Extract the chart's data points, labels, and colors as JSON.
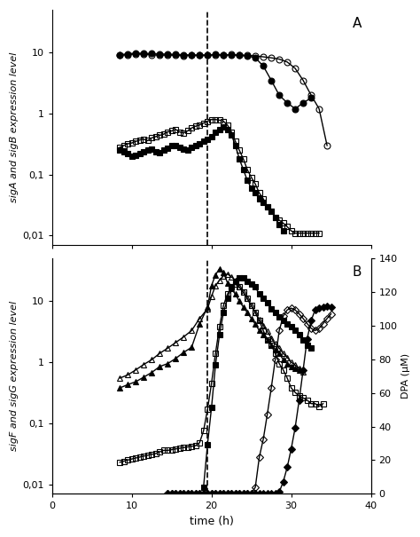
{
  "panel_A": {
    "open_circle": {
      "x": [
        8.5,
        9.5,
        10.5,
        11.5,
        12.5,
        13.5,
        14.5,
        15.5,
        16.5,
        17.5,
        18.5,
        19.5,
        20.5,
        21.5,
        22.5,
        23.5,
        24.5,
        25.5,
        26.5,
        27.5,
        28.5,
        29.5,
        30.5,
        31.5,
        32.5,
        33.5,
        34.5
      ],
      "y": [
        9.0,
        9.2,
        9.5,
        9.3,
        9.2,
        9.0,
        9.1,
        9.0,
        8.9,
        9.0,
        9.1,
        9.0,
        9.2,
        9.0,
        9.3,
        9.1,
        9.0,
        8.8,
        8.5,
        8.2,
        7.8,
        7.0,
        5.5,
        3.5,
        2.0,
        1.2,
        0.3
      ],
      "marker": "o",
      "fillstyle": "none",
      "color": "black",
      "markersize": 5
    },
    "filled_circle": {
      "x": [
        8.5,
        9.5,
        10.5,
        11.5,
        12.5,
        13.5,
        14.5,
        15.5,
        16.5,
        17.5,
        18.5,
        19.5,
        20.5,
        21.5,
        22.5,
        23.5,
        24.5,
        25.5,
        26.5,
        27.5,
        28.5,
        29.5,
        30.5,
        31.5,
        32.5
      ],
      "y": [
        9.2,
        9.5,
        9.8,
        9.7,
        9.6,
        9.5,
        9.4,
        9.3,
        9.2,
        9.1,
        9.0,
        9.1,
        9.3,
        9.2,
        9.1,
        9.0,
        8.8,
        8.2,
        6.0,
        3.5,
        2.0,
        1.5,
        1.2,
        1.5,
        1.8
      ],
      "marker": "o",
      "fillstyle": "full",
      "color": "black",
      "markersize": 5
    },
    "open_square": {
      "x": [
        8.5,
        9.0,
        9.5,
        10.0,
        10.5,
        11.0,
        11.5,
        12.0,
        12.5,
        13.0,
        13.5,
        14.0,
        14.5,
        15.0,
        15.5,
        16.0,
        16.5,
        17.0,
        17.5,
        18.0,
        18.5,
        19.0,
        19.5,
        20.0,
        20.5,
        21.0,
        21.5,
        22.0,
        22.5,
        23.0,
        23.5,
        24.0,
        24.5,
        25.0,
        25.5,
        26.0,
        26.5,
        27.0,
        27.5,
        28.0,
        28.5,
        29.0,
        29.5,
        30.0,
        30.5,
        31.0,
        31.5,
        32.0,
        32.5,
        33.0,
        33.5
      ],
      "y": [
        0.28,
        0.3,
        0.32,
        0.33,
        0.35,
        0.37,
        0.38,
        0.36,
        0.4,
        0.42,
        0.44,
        0.46,
        0.5,
        0.52,
        0.55,
        0.5,
        0.48,
        0.52,
        0.58,
        0.62,
        0.65,
        0.7,
        0.75,
        0.8,
        0.8,
        0.78,
        0.75,
        0.65,
        0.5,
        0.35,
        0.25,
        0.18,
        0.12,
        0.09,
        0.07,
        0.05,
        0.04,
        0.03,
        0.025,
        0.02,
        0.018,
        0.016,
        0.014,
        0.012,
        0.011,
        0.011,
        0.011,
        0.011,
        0.011,
        0.011,
        0.011
      ],
      "marker": "s",
      "fillstyle": "none",
      "color": "black",
      "markersize": 4
    },
    "filled_square": {
      "x": [
        8.5,
        9.0,
        9.5,
        10.0,
        10.5,
        11.0,
        11.5,
        12.0,
        12.5,
        13.0,
        13.5,
        14.0,
        14.5,
        15.0,
        15.5,
        16.0,
        16.5,
        17.0,
        17.5,
        18.0,
        18.5,
        19.0,
        19.5,
        20.0,
        20.5,
        21.0,
        21.5,
        22.0,
        22.5,
        23.0,
        23.5,
        24.0,
        24.5,
        25.0,
        25.5,
        26.0,
        26.5,
        27.0,
        27.5,
        28.0,
        28.5,
        29.0
      ],
      "y": [
        0.25,
        0.24,
        0.22,
        0.2,
        0.21,
        0.22,
        0.24,
        0.25,
        0.26,
        0.24,
        0.23,
        0.25,
        0.27,
        0.3,
        0.3,
        0.28,
        0.26,
        0.25,
        0.28,
        0.3,
        0.32,
        0.35,
        0.38,
        0.42,
        0.5,
        0.55,
        0.6,
        0.55,
        0.45,
        0.3,
        0.18,
        0.12,
        0.08,
        0.06,
        0.05,
        0.04,
        0.035,
        0.03,
        0.025,
        0.02,
        0.015,
        0.012
      ],
      "marker": "s",
      "fillstyle": "full",
      "color": "black",
      "markersize": 4
    },
    "dashed_line_x": 19.5,
    "ylim": [
      0.007,
      50
    ],
    "yticks": [
      0.01,
      0.1,
      1,
      10
    ],
    "yticklabels": [
      "0,01",
      "0,1",
      "1",
      "10"
    ],
    "xlim": [
      0,
      40
    ],
    "xticks": [
      0,
      10,
      20,
      30,
      40
    ],
    "ylabel": "sigA and sigB expression level",
    "label": "A"
  },
  "panel_B": {
    "open_triangle": {
      "x": [
        8.5,
        9.5,
        10.5,
        11.5,
        12.5,
        13.5,
        14.5,
        15.5,
        16.5,
        17.5,
        18.5,
        19.5,
        20.0,
        20.5,
        21.0,
        21.5,
        22.0,
        22.5,
        23.0,
        23.5,
        24.0,
        24.5,
        25.0,
        25.5,
        26.0,
        26.5,
        27.0,
        27.5,
        28.0,
        28.5,
        29.0,
        29.5,
        30.0,
        30.5,
        31.0,
        31.5
      ],
      "y": [
        0.55,
        0.62,
        0.75,
        0.92,
        1.1,
        1.4,
        1.7,
        2.1,
        2.6,
        3.3,
        5.2,
        7.5,
        12.0,
        18.0,
        22.0,
        26.0,
        28.0,
        25.0,
        22.0,
        17.0,
        14.0,
        11.0,
        8.5,
        6.5,
        5.0,
        4.0,
        3.2,
        2.5,
        2.0,
        1.7,
        1.4,
        1.2,
        1.0,
        0.9,
        0.8,
        0.7
      ],
      "marker": "^",
      "fillstyle": "none",
      "color": "black",
      "markersize": 5
    },
    "filled_triangle": {
      "x": [
        8.5,
        9.5,
        10.5,
        11.5,
        12.5,
        13.5,
        14.5,
        15.5,
        16.5,
        17.5,
        18.5,
        19.5,
        20.0,
        20.5,
        21.0,
        21.5,
        22.0,
        22.5,
        23.0,
        23.5,
        24.0,
        24.5,
        25.0,
        25.5,
        26.0,
        26.5,
        27.0,
        27.5,
        28.0,
        28.5,
        29.0,
        29.5,
        30.0,
        30.5,
        31.0
      ],
      "y": [
        0.38,
        0.43,
        0.48,
        0.57,
        0.68,
        0.85,
        0.95,
        1.15,
        1.45,
        1.75,
        4.2,
        8.0,
        18.0,
        27.0,
        34.0,
        30.0,
        20.0,
        16.0,
        13.0,
        10.0,
        8.0,
        6.5,
        5.2,
        4.2,
        3.3,
        2.8,
        2.3,
        1.9,
        1.6,
        1.4,
        1.1,
        0.95,
        0.85,
        0.8,
        0.75
      ],
      "marker": "^",
      "fillstyle": "full",
      "color": "black",
      "markersize": 5
    },
    "open_square": {
      "x": [
        8.5,
        9.0,
        9.5,
        10.0,
        10.5,
        11.0,
        11.5,
        12.0,
        12.5,
        13.0,
        13.5,
        14.0,
        14.5,
        15.0,
        15.5,
        16.0,
        16.5,
        17.0,
        17.5,
        18.0,
        18.5,
        19.0,
        19.5,
        20.0,
        20.5,
        21.0,
        21.5,
        22.0,
        22.5,
        23.0,
        23.5,
        24.0,
        24.5,
        25.0,
        25.5,
        26.0,
        26.5,
        27.0,
        27.5,
        28.0,
        28.5,
        29.0,
        29.5,
        30.0,
        30.5,
        31.0,
        31.5,
        32.0,
        32.5,
        33.0,
        33.5,
        34.0
      ],
      "y": [
        0.023,
        0.024,
        0.025,
        0.026,
        0.027,
        0.028,
        0.029,
        0.03,
        0.031,
        0.032,
        0.034,
        0.036,
        0.036,
        0.037,
        0.038,
        0.039,
        0.04,
        0.041,
        0.042,
        0.043,
        0.048,
        0.075,
        0.17,
        0.45,
        1.4,
        3.8,
        8.5,
        13.0,
        17.0,
        19.0,
        17.0,
        14.0,
        11.0,
        8.5,
        6.5,
        4.8,
        3.3,
        2.3,
        1.9,
        1.4,
        0.95,
        0.75,
        0.55,
        0.38,
        0.32,
        0.28,
        0.26,
        0.24,
        0.21,
        0.21,
        0.19,
        0.21
      ],
      "marker": "s",
      "fillstyle": "none",
      "color": "black",
      "markersize": 4
    },
    "filled_square": {
      "x": [
        19.0,
        19.5,
        20.0,
        20.5,
        21.0,
        21.5,
        22.0,
        22.5,
        23.0,
        23.5,
        24.0,
        24.5,
        25.0,
        25.5,
        26.0,
        26.5,
        27.0,
        27.5,
        28.0,
        28.5,
        29.0,
        29.5,
        30.0,
        30.5,
        31.0,
        31.5,
        32.0,
        32.5
      ],
      "y": [
        0.009,
        0.045,
        0.18,
        0.9,
        2.8,
        6.5,
        11.0,
        17.0,
        21.0,
        24.0,
        24.0,
        21.0,
        19.0,
        17.0,
        13.0,
        11.0,
        9.5,
        7.5,
        6.5,
        5.5,
        4.8,
        4.2,
        3.8,
        3.3,
        2.8,
        2.3,
        1.9,
        1.7
      ],
      "marker": "s",
      "fillstyle": "full",
      "color": "black",
      "markersize": 4
    },
    "open_diamond": {
      "x": [
        14.5,
        15.0,
        15.5,
        16.0,
        16.5,
        17.0,
        17.5,
        18.0,
        18.5,
        19.0,
        19.5,
        20.0,
        20.5,
        21.0,
        21.5,
        22.0,
        22.5,
        23.0,
        23.5,
        24.0,
        24.5,
        25.0,
        25.5,
        26.0,
        26.5,
        27.0,
        27.5,
        28.0,
        28.5,
        29.0,
        29.5,
        30.0,
        30.5,
        31.0,
        31.5,
        32.0,
        32.5,
        33.0,
        33.5,
        34.0,
        34.5,
        35.0
      ],
      "y": [
        0.007,
        0.007,
        0.007,
        0.007,
        0.007,
        0.007,
        0.007,
        0.007,
        0.007,
        0.007,
        0.007,
        0.007,
        0.007,
        0.007,
        0.007,
        0.007,
        0.007,
        0.007,
        0.007,
        0.007,
        0.007,
        0.007,
        0.009,
        0.028,
        0.055,
        0.14,
        0.38,
        1.1,
        3.3,
        5.7,
        7.2,
        7.7,
        7.2,
        6.2,
        5.2,
        4.3,
        3.6,
        3.3,
        3.6,
        4.3,
        5.2,
        6.2
      ],
      "marker": "D",
      "fillstyle": "none",
      "color": "black",
      "markersize": 4
    },
    "filled_diamond": {
      "x": [
        14.5,
        15.0,
        15.5,
        16.0,
        16.5,
        17.0,
        17.5,
        18.0,
        18.5,
        19.0,
        19.5,
        20.0,
        20.5,
        21.0,
        21.5,
        22.0,
        22.5,
        23.0,
        23.5,
        24.0,
        24.5,
        25.0,
        25.5,
        26.0,
        26.5,
        27.0,
        27.5,
        28.0,
        28.5,
        29.0,
        29.5,
        30.0,
        30.5,
        31.0,
        31.5,
        32.0,
        32.5,
        33.0,
        33.5,
        34.0,
        34.5,
        35.0
      ],
      "y": [
        0.007,
        0.007,
        0.007,
        0.007,
        0.007,
        0.007,
        0.007,
        0.007,
        0.007,
        0.007,
        0.007,
        0.007,
        0.007,
        0.007,
        0.007,
        0.007,
        0.007,
        0.007,
        0.007,
        0.007,
        0.007,
        0.007,
        0.007,
        0.007,
        0.007,
        0.007,
        0.007,
        0.007,
        0.0075,
        0.011,
        0.019,
        0.038,
        0.085,
        0.24,
        0.75,
        2.4,
        4.8,
        7.2,
        7.7,
        8.1,
        8.4,
        8.1
      ],
      "marker": "D",
      "fillstyle": "full",
      "color": "black",
      "markersize": 4
    },
    "dashed_line_x": 19.5,
    "ylim": [
      0.007,
      50
    ],
    "yticks": [
      0.01,
      0.1,
      1,
      10
    ],
    "yticklabels": [
      "0,01",
      "0,1",
      "1",
      "10"
    ],
    "xlim": [
      0,
      40
    ],
    "xticks": [
      0,
      10,
      20,
      30,
      40
    ],
    "ylabel": "sigF and sigG expression level",
    "xlabel": "time (h)",
    "label": "B",
    "right_yticks": [
      0,
      20,
      40,
      60,
      80,
      100,
      120,
      140
    ],
    "right_ylim": [
      0,
      140
    ],
    "right_ylabel": "DPA (μM)"
  },
  "linewidth": 1.0,
  "figsize": [
    4.74,
    6.05
  ],
  "dpi": 100
}
